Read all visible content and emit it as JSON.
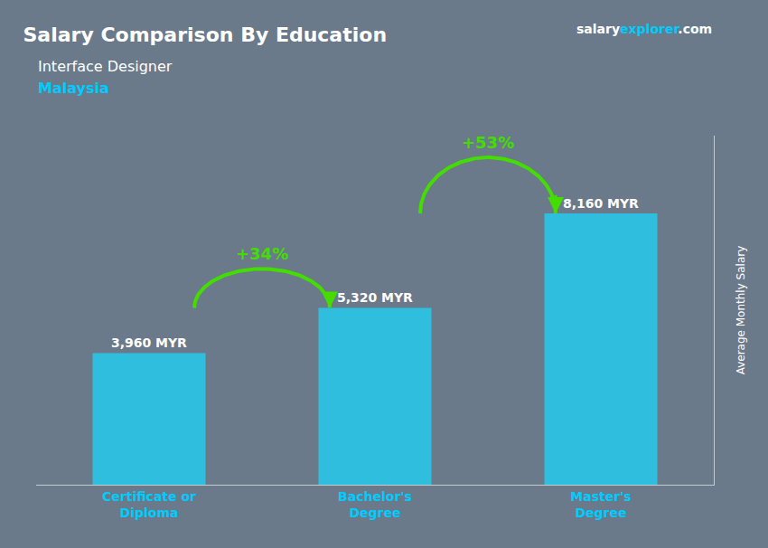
{
  "chart_data": {
    "type": "bar",
    "title": "Salary Comparison By Education",
    "subtitle": "Interface Designer",
    "ylabel": "Average Monthly Salary",
    "categories": [
      "Certificate or\nDiploma",
      "Bachelor's\nDegree",
      "Master's\nDegree"
    ],
    "values": [
      3960,
      5320,
      8160
    ],
    "value_labels": [
      "3,960 MYR",
      "5,320 MYR",
      "8,160 MYR"
    ],
    "data_labels": true,
    "color": "#29c5e6",
    "ylim": [
      0,
      10500
    ],
    "tick_labels": "x",
    "grid": false,
    "change_labels": [
      "+34%",
      "+53%"
    ],
    "change_color": "#44dd00",
    "category_color": "#00ccff",
    "annotations": [
      {
        "text": "Malaysia",
        "color": "#00ccff"
      }
    ],
    "source": [
      {
        "text": "salary",
        "color": "#ffffff"
      },
      {
        "text": "explorer",
        "color": "#00ccff"
      },
      {
        "text": ".com",
        "color": "#ffffff"
      }
    ],
    "background": "#6a7a8a",
    "text_color": "#ffffff"
  }
}
